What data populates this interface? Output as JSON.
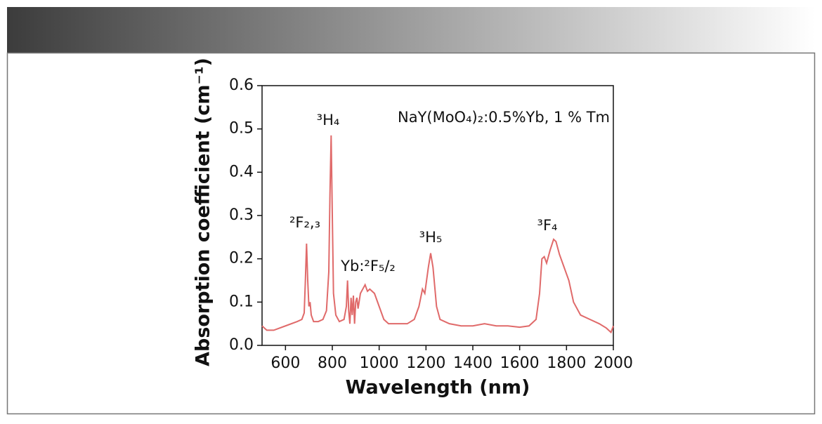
{
  "chart_data": {
    "type": "line",
    "title": "NaY(MoO₄)₂:0.5%Yb, 1 % Tm",
    "x_label": "Wavelength (nm)",
    "y_label": "Absorption coefficient (cm⁻¹)",
    "annotations": [
      "²F₂,₃",
      "³H₄",
      "Yb:²F₅/₂",
      "³H₅",
      "³F₄"
    ],
    "x": [
      500,
      520,
      550,
      600,
      650,
      670,
      680,
      685,
      690,
      695,
      700,
      705,
      710,
      720,
      740,
      760,
      775,
      785,
      790,
      795,
      800,
      805,
      815,
      830,
      850,
      860,
      865,
      870,
      875,
      880,
      885,
      890,
      895,
      900,
      905,
      910,
      920,
      930,
      940,
      950,
      960,
      980,
      1000,
      1020,
      1040,
      1080,
      1120,
      1150,
      1170,
      1185,
      1195,
      1210,
      1220,
      1230,
      1245,
      1260,
      1300,
      1350,
      1400,
      1450,
      1500,
      1550,
      1600,
      1640,
      1670,
      1685,
      1695,
      1705,
      1715,
      1730,
      1745,
      1755,
      1770,
      1790,
      1810,
      1830,
      1860,
      1900,
      1940,
      1970,
      1990,
      2000
    ],
    "series": [
      {
        "color": "#e06a6a",
        "values": [
          0.045,
          0.035,
          0.035,
          0.045,
          0.055,
          0.06,
          0.075,
          0.15,
          0.235,
          0.15,
          0.09,
          0.1,
          0.07,
          0.055,
          0.055,
          0.06,
          0.08,
          0.17,
          0.35,
          0.485,
          0.3,
          0.12,
          0.07,
          0.055,
          0.06,
          0.09,
          0.15,
          0.08,
          0.05,
          0.11,
          0.07,
          0.115,
          0.05,
          0.1,
          0.11,
          0.085,
          0.12,
          0.13,
          0.14,
          0.125,
          0.13,
          0.12,
          0.09,
          0.06,
          0.05,
          0.05,
          0.05,
          0.06,
          0.09,
          0.13,
          0.12,
          0.18,
          0.213,
          0.18,
          0.09,
          0.06,
          0.05,
          0.045,
          0.045,
          0.05,
          0.045,
          0.045,
          0.042,
          0.045,
          0.06,
          0.12,
          0.2,
          0.205,
          0.19,
          0.22,
          0.245,
          0.24,
          0.21,
          0.18,
          0.15,
          0.1,
          0.07,
          0.06,
          0.05,
          0.04,
          0.03,
          0.045
        ]
      }
    ],
    "xlim": [
      500,
      2000
    ],
    "xticks": [
      600,
      800,
      1000,
      1200,
      1400,
      1600,
      1800,
      2000
    ],
    "ylim": [
      0,
      0.6
    ],
    "yticks": [
      {
        "value": 0,
        "label": "0.0"
      },
      0.1,
      0.2,
      0.3,
      0.4,
      0.5,
      0.6
    ]
  }
}
